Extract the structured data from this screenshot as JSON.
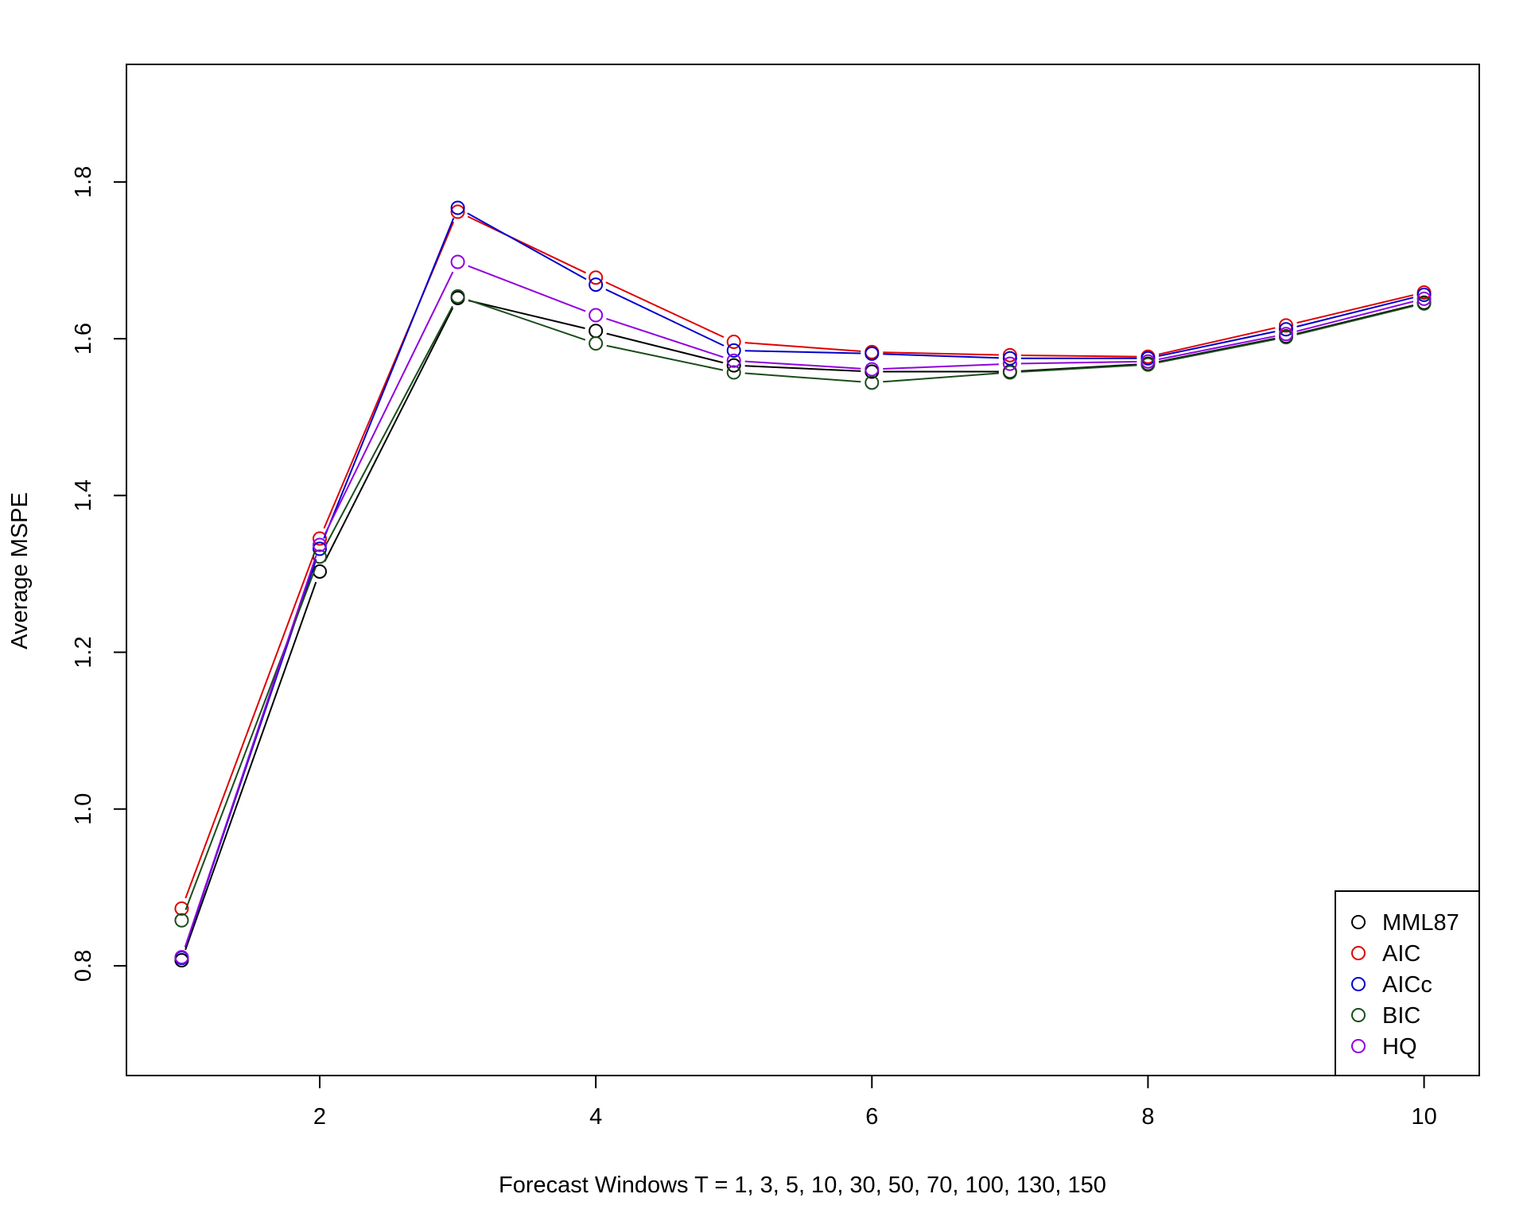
{
  "chart_data": {
    "type": "line",
    "title": "",
    "xlabel": "Forecast Windows T = 1, 3, 5, 10, 30, 50, 70, 100, 130, 150",
    "ylabel": "Average MSPE",
    "x": [
      1,
      2,
      3,
      4,
      5,
      6,
      7,
      8,
      9,
      10
    ],
    "xlim": [
      0.6,
      10.4
    ],
    "ylim": [
      0.66,
      1.95
    ],
    "xticks": [
      2,
      4,
      6,
      8,
      10
    ],
    "yticks": [
      0.8,
      1.0,
      1.2,
      1.4,
      1.6,
      1.8
    ],
    "xtick_labels": [
      "2",
      "4",
      "6",
      "8",
      "10"
    ],
    "ytick_labels": [
      "0.8",
      "1.0",
      "1.2",
      "1.4",
      "1.6",
      "1.8"
    ],
    "grid": false,
    "legend_position": "bottom-right",
    "marker": "open-circle",
    "series": [
      {
        "name": "MML87",
        "color": "#000000",
        "values": [
          0.807,
          1.303,
          1.652,
          1.61,
          1.566,
          1.558,
          1.558,
          1.568,
          1.603,
          1.646
        ]
      },
      {
        "name": "AIC",
        "color": "#e00000",
        "values": [
          0.873,
          1.345,
          1.762,
          1.678,
          1.596,
          1.583,
          1.579,
          1.577,
          1.617,
          1.659
        ]
      },
      {
        "name": "AICc",
        "color": "#0000cc",
        "values": [
          0.81,
          1.332,
          1.767,
          1.669,
          1.585,
          1.581,
          1.575,
          1.575,
          1.612,
          1.656
        ]
      },
      {
        "name": "BIC",
        "color": "#1a4d1a",
        "values": [
          0.858,
          1.322,
          1.654,
          1.594,
          1.557,
          1.544,
          1.557,
          1.567,
          1.602,
          1.645
        ]
      },
      {
        "name": "HQ",
        "color": "#9000e0",
        "values": [
          0.811,
          1.337,
          1.698,
          1.63,
          1.572,
          1.561,
          1.568,
          1.571,
          1.606,
          1.651
        ]
      }
    ]
  }
}
